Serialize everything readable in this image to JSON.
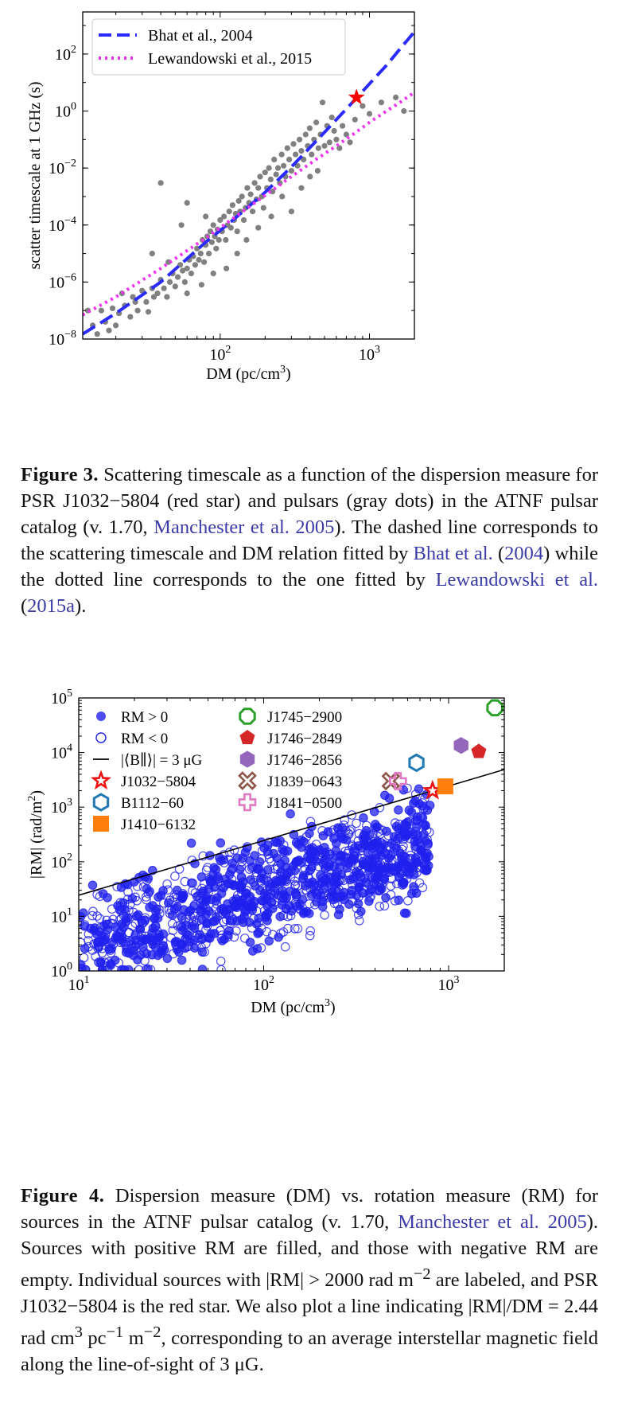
{
  "figure3": {
    "chart_data": {
      "type": "scatter",
      "xlabel": "DM (pc/cm",
      "xlabel_sup": "3",
      "xlabel_close": ")",
      "ylabel": "scatter timescale at 1 GHz (s)",
      "x_scale": "log",
      "y_scale": "log",
      "xlim": [
        12,
        2000
      ],
      "ylim": [
        1e-08,
        3000
      ],
      "x_ticks": [
        {
          "value": 100,
          "base": "10",
          "exp": "2"
        },
        {
          "value": 1000,
          "base": "10",
          "exp": "3"
        }
      ],
      "y_ticks": [
        {
          "value": 1e-08,
          "base": "10",
          "exp": "−8"
        },
        {
          "value": 1e-06,
          "base": "10",
          "exp": "−6"
        },
        {
          "value": 0.0001,
          "base": "10",
          "exp": "−4"
        },
        {
          "value": 0.01,
          "base": "10",
          "exp": "−2"
        },
        {
          "value": 1,
          "base": "10",
          "exp": "0"
        },
        {
          "value": 100,
          "base": "10",
          "exp": "2"
        }
      ],
      "legend_position": "top-left",
      "series": [
        {
          "name": "Bhat et al., 2004",
          "style": "dashed",
          "color": "#2b2bff",
          "x": [
            12,
            20,
            40,
            80,
            120,
            200,
            300,
            450,
            600,
            800,
            1000,
            1300,
            1600,
            2000
          ],
          "y": [
            1.5e-08,
            8e-08,
            1e-06,
            2.5e-05,
            0.00014,
            0.0014,
            0.011,
            0.1,
            0.5,
            2.5,
            9,
            40,
            150,
            600
          ]
        },
        {
          "name": "Lewandowski et al., 2015",
          "style": "dotted",
          "color": "#ee33ee",
          "x": [
            12,
            20,
            40,
            80,
            120,
            200,
            300,
            450,
            600,
            800,
            1000,
            1300,
            1600,
            2000
          ],
          "y": [
            7e-08,
            3e-07,
            3e-06,
            3.5e-05,
            0.00016,
            0.0011,
            0.005,
            0.022,
            0.06,
            0.17,
            0.4,
            1,
            2,
            4.5
          ]
        }
      ],
      "highlight": {
        "label": "PSR J1032−5804",
        "x": 819,
        "y": 3,
        "marker": "star",
        "color": "#ff0000"
      },
      "points_gray": [
        [
          13,
          1e-07
        ],
        [
          14,
          3e-08
        ],
        [
          15,
          1.5e-08
        ],
        [
          16,
          1e-07
        ],
        [
          17,
          4e-08
        ],
        [
          18,
          2e-08
        ],
        [
          19,
          1.2e-07
        ],
        [
          20,
          3e-08
        ],
        [
          21,
          8e-08
        ],
        [
          22,
          4e-07
        ],
        [
          23,
          1.5e-07
        ],
        [
          25,
          6e-08
        ],
        [
          26,
          3e-07
        ],
        [
          27,
          2e-07
        ],
        [
          28,
          1e-07
        ],
        [
          30,
          5e-07
        ],
        [
          32,
          2e-07
        ],
        [
          33,
          9e-08
        ],
        [
          35,
          6e-07
        ],
        [
          36,
          3e-07
        ],
        [
          38,
          4e-07
        ],
        [
          40,
          1.2e-06
        ],
        [
          42,
          6e-07
        ],
        [
          44,
          3e-07
        ],
        [
          46,
          1e-06
        ],
        [
          48,
          2e-06
        ],
        [
          50,
          7e-07
        ],
        [
          52,
          1.5e-06
        ],
        [
          54,
          4e-06
        ],
        [
          56,
          2.5e-06
        ],
        [
          58,
          1e-06
        ],
        [
          60,
          3e-06
        ],
        [
          62,
          6e-06
        ],
        [
          64,
          2e-06
        ],
        [
          66,
          8e-06
        ],
        [
          68,
          4e-06
        ],
        [
          70,
          1.5e-05
        ],
        [
          72,
          6e-06
        ],
        [
          74,
          1e-05
        ],
        [
          76,
          3e-05
        ],
        [
          78,
          5e-06
        ],
        [
          80,
          2e-05
        ],
        [
          82,
          4e-05
        ],
        [
          84,
          1e-05
        ],
        [
          86,
          6e-05
        ],
        [
          88,
          2.5e-05
        ],
        [
          90,
          0.0001
        ],
        [
          92,
          4e-05
        ],
        [
          94,
          1.5e-05
        ],
        [
          96,
          7e-05
        ],
        [
          98,
          3e-05
        ],
        [
          100,
          0.00015
        ],
        [
          103,
          6e-05
        ],
        [
          106,
          0.0002
        ],
        [
          109,
          3e-05
        ],
        [
          112,
          0.0001
        ],
        [
          115,
          0.0003
        ],
        [
          118,
          8e-05
        ],
        [
          121,
          0.0005
        ],
        [
          124,
          0.00015
        ],
        [
          127,
          0.00025
        ],
        [
          130,
          6e-05
        ],
        [
          133,
          0.0007
        ],
        [
          136,
          0.0003
        ],
        [
          140,
          0.001
        ],
        [
          144,
          0.00015
        ],
        [
          148,
          0.0004
        ],
        [
          152,
          0.002
        ],
        [
          156,
          0.0006
        ],
        [
          160,
          0.0012
        ],
        [
          165,
          0.0003
        ],
        [
          170,
          0.003
        ],
        [
          175,
          0.0008
        ],
        [
          180,
          0.002
        ],
        [
          185,
          0.005
        ],
        [
          190,
          0.001
        ],
        [
          195,
          0.0004
        ],
        [
          200,
          0.007
        ],
        [
          206,
          0.002
        ],
        [
          212,
          0.01
        ],
        [
          218,
          0.004
        ],
        [
          224,
          0.0015
        ],
        [
          230,
          0.02
        ],
        [
          237,
          0.006
        ],
        [
          244,
          0.01
        ],
        [
          251,
          0.003
        ],
        [
          258,
          0.03
        ],
        [
          266,
          0.012
        ],
        [
          274,
          0.005
        ],
        [
          282,
          0.05
        ],
        [
          290,
          0.02
        ],
        [
          300,
          0.008
        ],
        [
          310,
          0.07
        ],
        [
          320,
          0.03
        ],
        [
          330,
          0.012
        ],
        [
          340,
          0.1
        ],
        [
          350,
          0.04
        ],
        [
          362,
          0.02
        ],
        [
          374,
          0.15
        ],
        [
          386,
          0.06
        ],
        [
          398,
          0.25
        ],
        [
          410,
          0.03
        ],
        [
          425,
          0.1
        ],
        [
          440,
          0.4
        ],
        [
          455,
          0.05
        ],
        [
          470,
          0.15
        ],
        [
          485,
          2
        ],
        [
          500,
          0.06
        ],
        [
          520,
          0.3
        ],
        [
          540,
          0.08
        ],
        [
          560,
          0.6
        ],
        [
          580,
          0.2
        ],
        [
          600,
          0.1
        ],
        [
          630,
          0.05
        ],
        [
          660,
          0.3
        ],
        [
          700,
          0.15
        ],
        [
          740,
          0.08
        ],
        [
          800,
          0.5
        ],
        [
          900,
          1.5
        ],
        [
          1000,
          0.8
        ],
        [
          1200,
          2
        ],
        [
          1500,
          3
        ],
        [
          1700,
          1
        ],
        [
          35,
          1e-05
        ],
        [
          45,
          5e-06
        ],
        [
          55,
          0.0001
        ],
        [
          60,
          4e-07
        ],
        [
          75,
          8e-07
        ],
        [
          90,
          2e-06
        ],
        [
          110,
          3e-06
        ],
        [
          130,
          1e-05
        ],
        [
          150,
          3e-05
        ],
        [
          40,
          0.003
        ],
        [
          60,
          0.0006
        ],
        [
          80,
          0.0002
        ],
        [
          180,
          8e-05
        ],
        [
          220,
          0.0002
        ],
        [
          260,
          0.001
        ],
        [
          300,
          0.0003
        ],
        [
          350,
          0.002
        ],
        [
          400,
          0.005
        ],
        [
          450,
          0.008
        ]
      ]
    }
  },
  "caption3": {
    "label": "Figure 3.",
    "text_1": " Scattering timescale as a function of the dispersion measure for PSR J1032−5804 (red star) and pulsars (gray dots) in the ATNF pulsar catalog (v. 1.70, ",
    "cite_1": "Manchester et al. 2005",
    "text_2": "). The dashed line corresponds to the scattering timescale and DM relation fitted by ",
    "cite_2": "Bhat et al.",
    "text_3": " (",
    "cite_3": "2004",
    "text_4": ") while the dotted line corresponds to the one fitted by ",
    "cite_4": "Lewandowski et al.",
    "text_5": " (",
    "cite_5": "2015a",
    "text_6": ")."
  },
  "figure4": {
    "chart_data": {
      "type": "scatter",
      "xlabel": "DM (pc/cm",
      "xlabel_sup": "3",
      "xlabel_close": ")",
      "ylabel": "|RM| (rad/m",
      "ylabel_sup": "2",
      "ylabel_close": ")",
      "x_scale": "log",
      "y_scale": "log",
      "xlim": [
        10,
        2000
      ],
      "ylim": [
        1,
        100000
      ],
      "x_ticks": [
        {
          "value": 10,
          "base": "10",
          "exp": "1"
        },
        {
          "value": 100,
          "base": "10",
          "exp": "2"
        },
        {
          "value": 1000,
          "base": "10",
          "exp": "3"
        }
      ],
      "y_ticks": [
        {
          "value": 1,
          "base": "10",
          "exp": "0"
        },
        {
          "value": 10,
          "base": "10",
          "exp": "1"
        },
        {
          "value": 100,
          "base": "10",
          "exp": "2"
        },
        {
          "value": 1000,
          "base": "10",
          "exp": "3"
        },
        {
          "value": 10000,
          "base": "10",
          "exp": "4"
        },
        {
          "value": 100000,
          "base": "10",
          "exp": "5"
        }
      ],
      "legend_left": [
        "RM > 0",
        "RM < 0",
        "|⟨B∥⟩| = 3 μG",
        "J1032−5804",
        "B1112−60",
        "J1410−6132"
      ],
      "legend_right": [
        "J1745−2900",
        "J1746−2849",
        "J1746−2856",
        "J1839−0643",
        "J1841−0500"
      ],
      "line": {
        "slope": 2.44,
        "label": "|⟨B∥⟩| = 3 μG"
      },
      "labeled_sources": [
        {
          "name": "J1032−5804",
          "x": 819,
          "y": 2000,
          "marker": "star",
          "color": "#ee1111"
        },
        {
          "name": "B1112−60",
          "x": 670,
          "y": 6500,
          "marker": "hexagon-open",
          "color": "#1f77b4"
        },
        {
          "name": "J1410−6132",
          "x": 960,
          "y": 2400,
          "marker": "square",
          "color": "#ff7f0e"
        },
        {
          "name": "J1745−2900",
          "x": 1778,
          "y": 66000,
          "marker": "octagon-open",
          "color": "#2ca02c"
        },
        {
          "name": "J1746−2849",
          "x": 1456,
          "y": 10400,
          "marker": "pentagon",
          "color": "#d62728"
        },
        {
          "name": "J1746−2856",
          "x": 1168,
          "y": 13500,
          "marker": "hexagon",
          "color": "#9467bd"
        },
        {
          "name": "J1839−0643",
          "x": 487,
          "y": 3000,
          "marker": "x-open",
          "color": "#8c564b"
        },
        {
          "name": "J1841−0500",
          "x": 532,
          "y": 3000,
          "marker": "plus-open",
          "color": "#e377c2"
        }
      ]
    }
  },
  "caption4": {
    "label": "Figure 4.",
    "text_1": " Dispersion measure (DM) vs. rotation measure (RM) for sources in the ATNF pulsar catalog (v. 1.70, ",
    "cite_1": "Manchester et al. 2005",
    "text_2": "). Sources with positive RM are filled, and those with negative RM are empty. Individual sources with |RM| > 2000 rad m",
    "sup_1": "−2",
    "text_3": " are labeled, and PSR J1032−5804 is the red star. We also plot a line indicating |RM|/DM = 2.44 rad cm",
    "sup_2": "3",
    "text_4": " pc",
    "sup_3": "−1",
    "text_5": " m",
    "sup_4": "−2",
    "text_6": ", corresponding to an average interstellar magnetic field along the line-of-sight of 3 μG."
  }
}
